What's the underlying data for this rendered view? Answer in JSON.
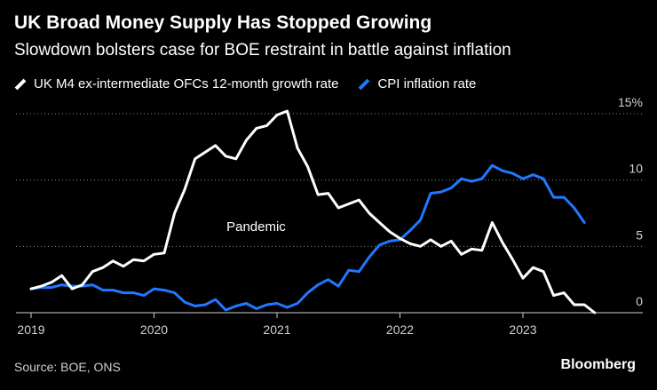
{
  "chart_data": {
    "type": "line",
    "title": "UK Broad Money Supply Has Stopped Growing",
    "subtitle": "Slowdown bolsters case for BOE restraint in battle against inflation",
    "xlabel": "",
    "ylabel": "",
    "ylim": [
      0,
      15
    ],
    "yticks": [
      0,
      5,
      10,
      15
    ],
    "ytick_labels": [
      "0",
      "5",
      "10",
      "15%"
    ],
    "xticks": [
      2019,
      2020,
      2021,
      2022,
      2023
    ],
    "xtick_labels": [
      "2019",
      "2020",
      "2021",
      "2022",
      "2023"
    ],
    "x_start": 2019.0,
    "x_step": 0.0833333,
    "grid": true,
    "legend_position": "top-left",
    "annotations": [
      {
        "text": "Pandemic",
        "x": 2020.83,
        "y": 6.5
      }
    ],
    "series": [
      {
        "name": "UK M4 ex-intermediate OFCs 12-month growth rate",
        "color": "#ffffff",
        "values": [
          1.8,
          2.0,
          2.3,
          2.8,
          1.8,
          2.1,
          3.1,
          3.4,
          3.9,
          3.5,
          4.0,
          3.9,
          4.4,
          4.5,
          7.5,
          9.3,
          11.6,
          12.1,
          12.6,
          11.8,
          11.6,
          13.0,
          13.9,
          14.1,
          14.9,
          15.2,
          12.4,
          11.0,
          8.9,
          9.0,
          7.9,
          8.2,
          8.5,
          7.5,
          6.8,
          6.1,
          5.6,
          5.2,
          5.0,
          5.5,
          5.0,
          5.4,
          4.4,
          4.8,
          4.7,
          6.8,
          5.3,
          4.0,
          2.6,
          3.4,
          3.1,
          1.3,
          1.5,
          0.6,
          0.6,
          0.0
        ]
      },
      {
        "name": "CPI inflation rate",
        "color": "#1f78ff",
        "values": [
          1.8,
          1.9,
          1.9,
          2.1,
          2.0,
          2.0,
          2.1,
          1.7,
          1.7,
          1.5,
          1.5,
          1.3,
          1.8,
          1.7,
          1.5,
          0.8,
          0.5,
          0.6,
          1.0,
          0.2,
          0.5,
          0.7,
          0.3,
          0.6,
          0.7,
          0.4,
          0.7,
          1.5,
          2.1,
          2.5,
          2.0,
          3.2,
          3.1,
          4.2,
          5.1,
          5.4,
          5.5,
          6.2,
          7.0,
          9.0,
          9.1,
          9.4,
          10.1,
          9.9,
          10.1,
          11.1,
          10.7,
          10.5,
          10.1,
          10.4,
          10.1,
          8.7,
          8.7,
          7.9,
          6.8
        ]
      }
    ]
  },
  "footer": {
    "source": "Source: BOE, ONS",
    "brand": "Bloomberg"
  }
}
